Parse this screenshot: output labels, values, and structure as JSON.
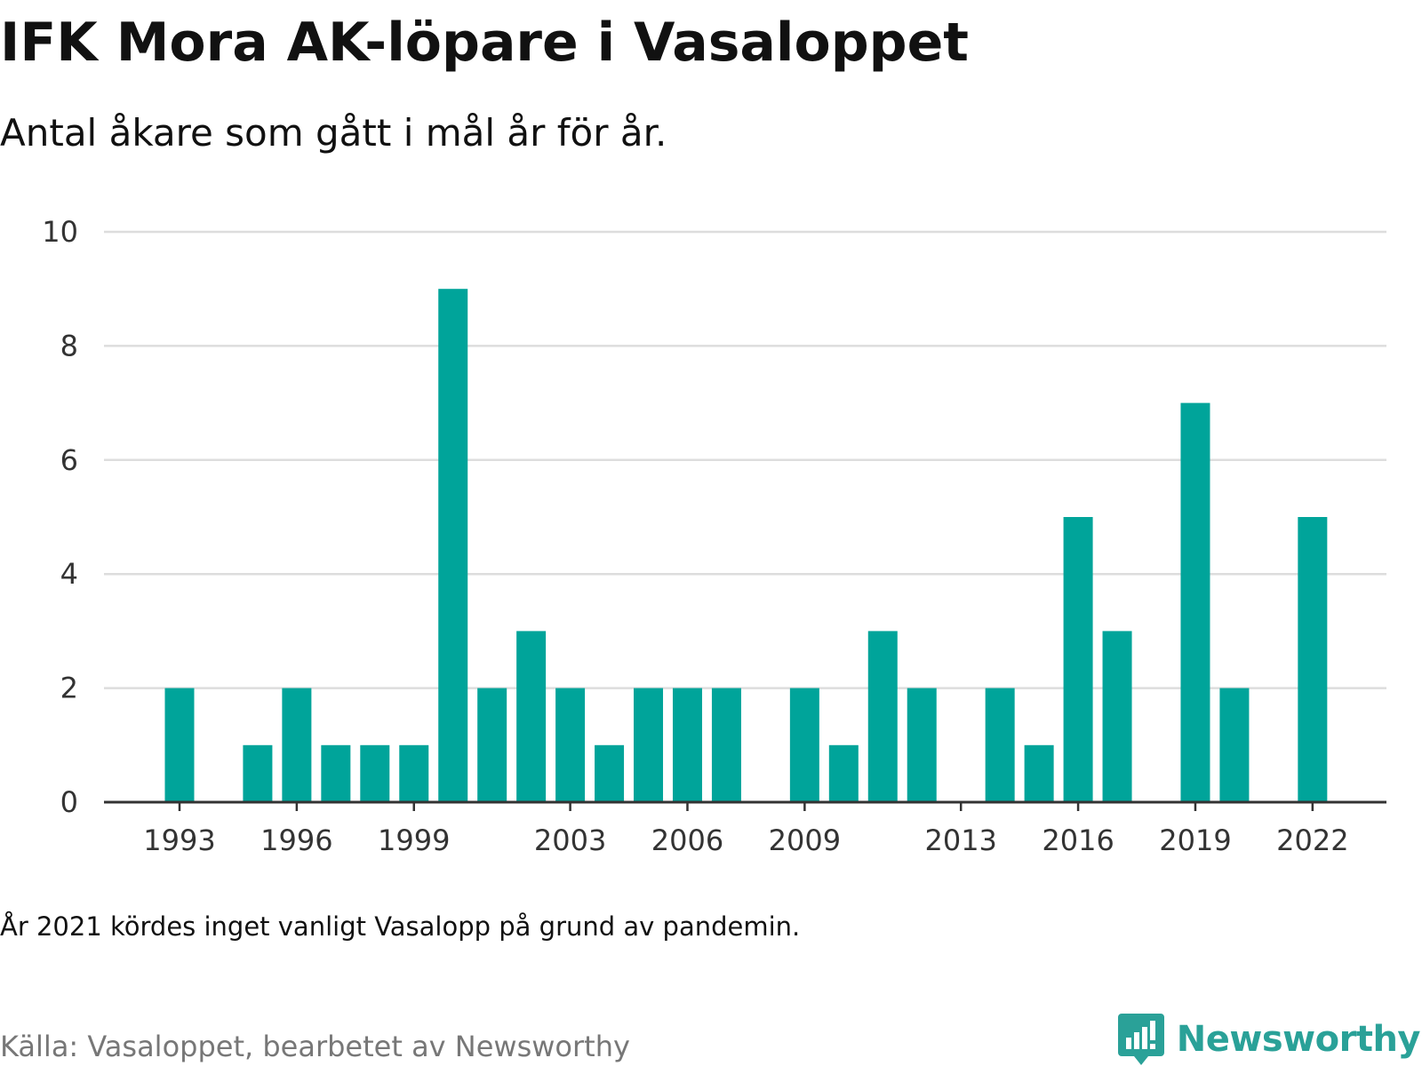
{
  "header": {
    "title": "IFK Mora AK-löpare i Vasaloppet",
    "subtitle": "Antal åkare som gått i mål år för år."
  },
  "footer": {
    "note": "År 2021 kördes inget vanligt Vasalopp på grund av pandemin.",
    "source": "Källa: Vasaloppet, bearbetet av Newsworthy",
    "logo_text": "Newsworthy",
    "logo_icon": "bar-chart-speech-bubble-icon"
  },
  "colors": {
    "bar": "#00a49a",
    "grid": "#dddddd",
    "axis": "#333333",
    "tick_text": "#333333",
    "logo": "#2aa198"
  },
  "chart_data": {
    "type": "bar",
    "title": "IFK Mora AK-löpare i Vasaloppet",
    "subtitle": "Antal åkare som gått i mål år för år.",
    "xlabel": "",
    "ylabel": "",
    "ylim": [
      0,
      10
    ],
    "yticks": [
      0,
      2,
      4,
      6,
      8,
      10
    ],
    "grid": true,
    "legend": "none",
    "x": [
      1993,
      1994,
      1995,
      1996,
      1997,
      1998,
      1999,
      2000,
      2001,
      2002,
      2003,
      2004,
      2005,
      2006,
      2007,
      2008,
      2009,
      2010,
      2011,
      2012,
      2013,
      2014,
      2015,
      2016,
      2017,
      2018,
      2019,
      2020,
      2021,
      2022
    ],
    "values": [
      2,
      0,
      1,
      2,
      1,
      1,
      1,
      9,
      2,
      3,
      2,
      1,
      2,
      2,
      2,
      0,
      2,
      1,
      3,
      2,
      0,
      2,
      1,
      5,
      3,
      0,
      7,
      2,
      0,
      5
    ],
    "xticks": [
      1993,
      1996,
      1999,
      2003,
      2006,
      2009,
      2013,
      2016,
      2019,
      2022
    ]
  }
}
